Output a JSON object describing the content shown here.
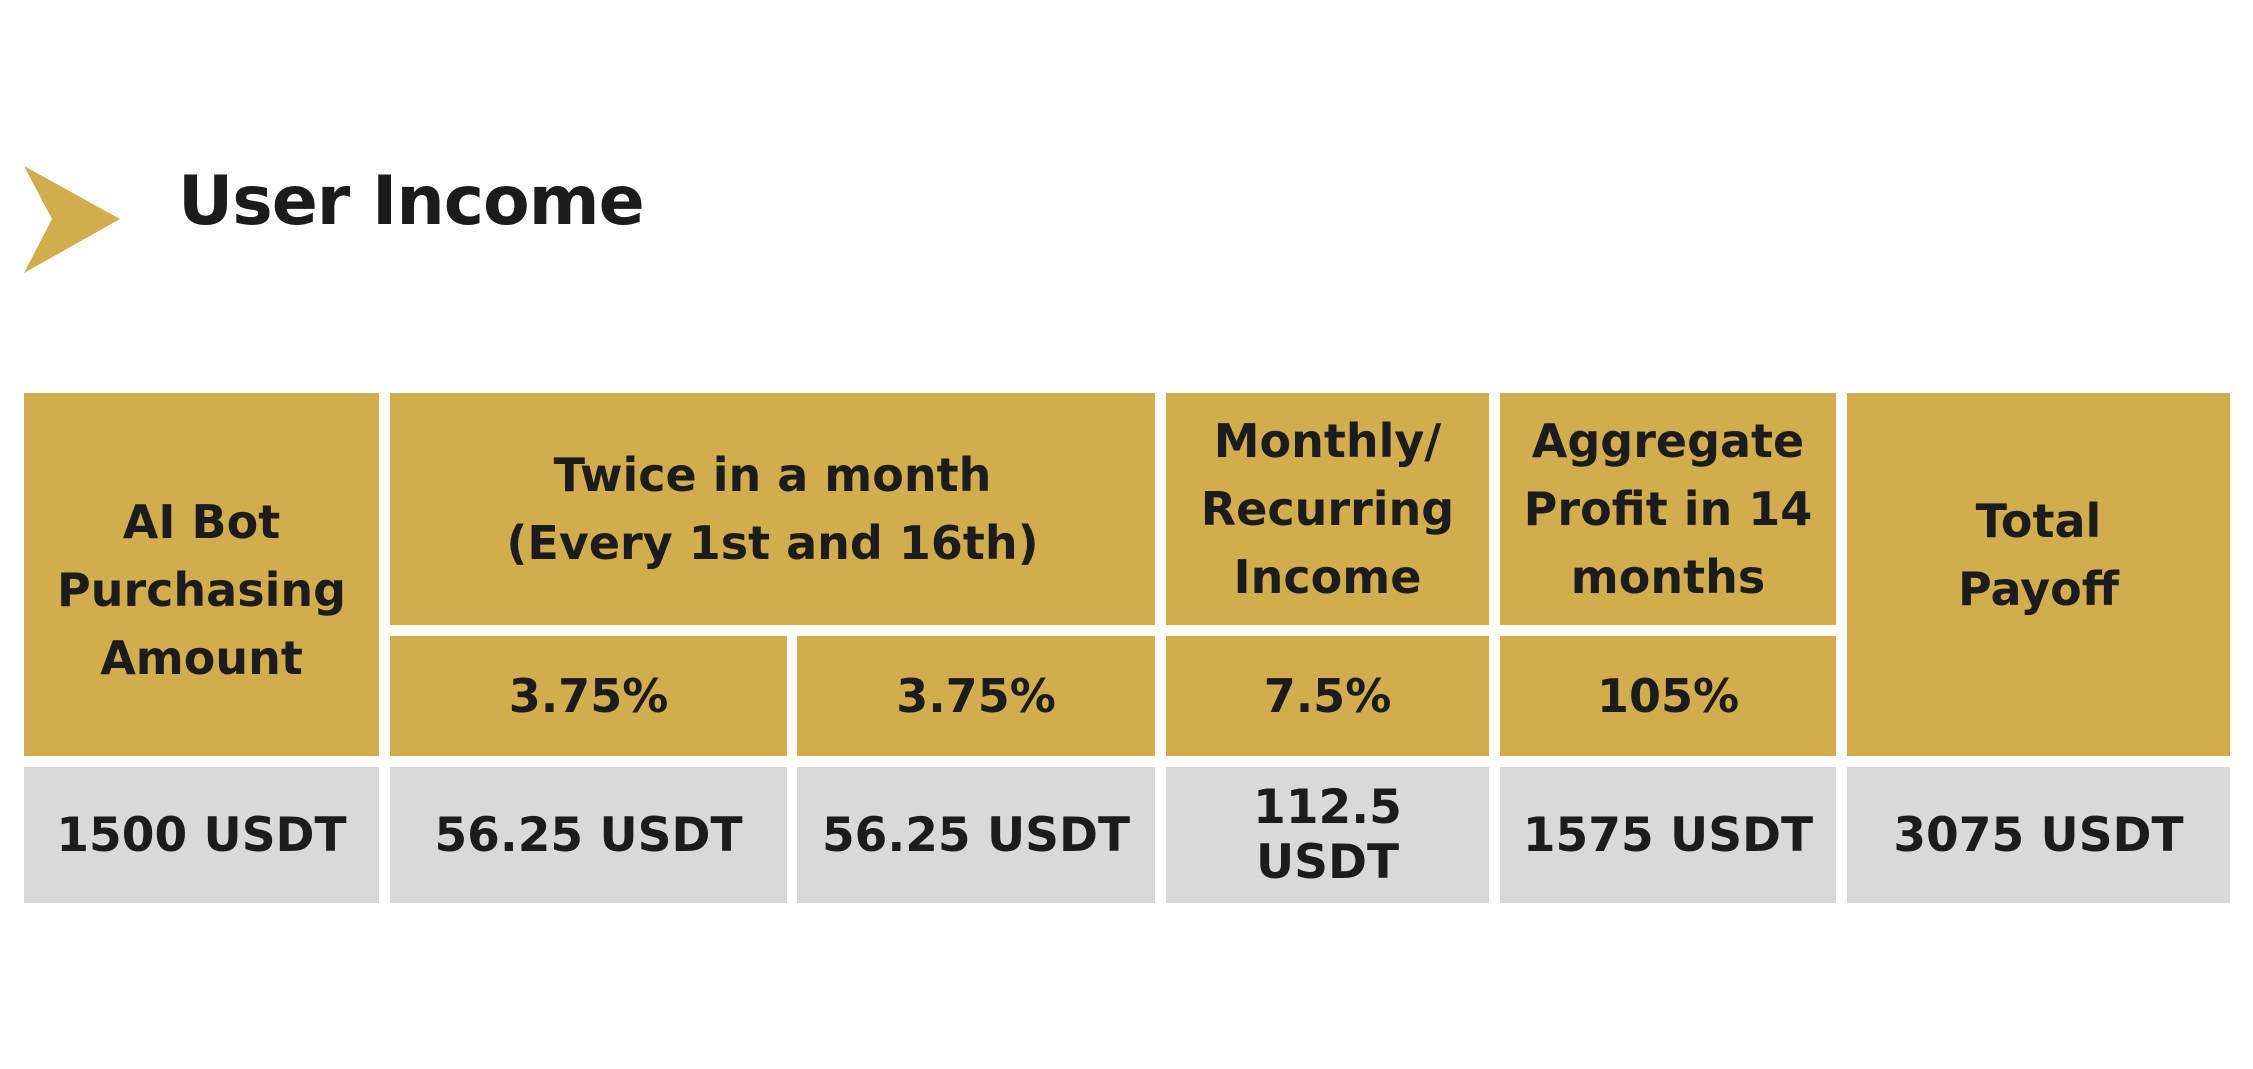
{
  "title": "User Income",
  "colors": {
    "accent": "#d2ad4e",
    "value_row": "#d9d9d9",
    "text": "#1c1c1c"
  },
  "icon": "arrow-chevron-right",
  "table": {
    "headers": {
      "purchase": [
        "AI Bot",
        "Purchasing",
        "Amount"
      ],
      "twice": [
        "Twice in a month",
        "(Every 1st and 16th)"
      ],
      "monthly": [
        "Monthly/",
        "Recurring",
        "Income"
      ],
      "aggregate": [
        "Aggregate",
        "Profit in 14",
        "months"
      ],
      "total": [
        "Total",
        "Payoff"
      ]
    },
    "rates": {
      "first": "3.75%",
      "second": "3.75%",
      "monthly": "7.5%",
      "aggregate": "105%"
    },
    "values": [
      "1500 USDT",
      "56.25 USDT",
      "56.25 USDT",
      "112.5 USDT",
      "1575 USDT",
      "3075 USDT"
    ]
  }
}
